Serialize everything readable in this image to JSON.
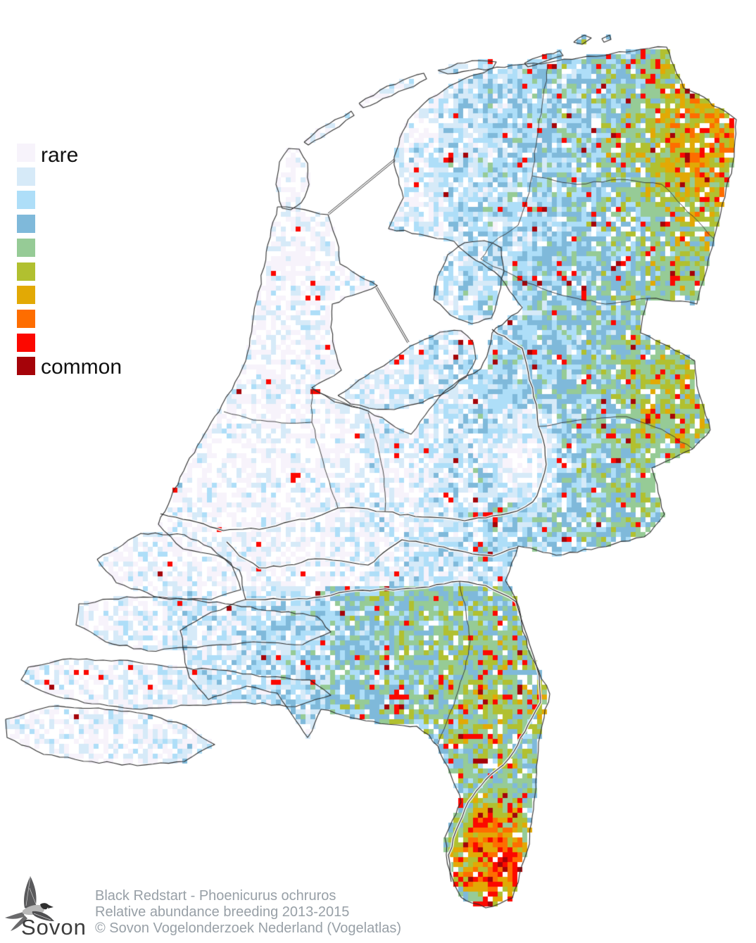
{
  "legend": {
    "label_top": "rare",
    "label_bottom": "common",
    "colors": [
      "#f7f3fb",
      "#d6eaf8",
      "#aedef8",
      "#7fb9da",
      "#96cb96",
      "#b1c030",
      "#e2a905",
      "#fe6d00",
      "#fc0800",
      "#a50309"
    ]
  },
  "caption": {
    "line1": "Black Redstart - Phoenicurus ochruros",
    "line2": "Relative abundance breeding 2013-2015",
    "line3": "© Sovon Vogelonderzoek Nederland (Vogelatlas)"
  },
  "logo": {
    "wordmark": "Sovon"
  },
  "colors": {
    "outline": "#2b2b2b",
    "province_border": "#333333",
    "sea": "#ffffff",
    "caption_text": "#98a0a7",
    "legend_text": "#101010",
    "logo_text": "#3c3c3c"
  }
}
